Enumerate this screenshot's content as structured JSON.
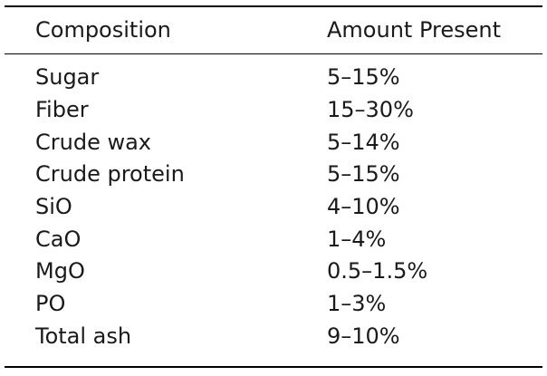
{
  "table": {
    "headers": [
      "Composition",
      "Amount Present"
    ],
    "rows": [
      [
        "Sugar",
        "5–15%"
      ],
      [
        "Fiber",
        "15–30%"
      ],
      [
        "Crude wax",
        "5–14%"
      ],
      [
        "Crude protein",
        "5–15%"
      ],
      [
        "SiO",
        "4–10%"
      ],
      [
        "CaO",
        "1–4%"
      ],
      [
        "MgO",
        "0.5–1.5%"
      ],
      [
        "PO",
        "1–3%"
      ],
      [
        "Total ash",
        "9–10%"
      ]
    ]
  }
}
